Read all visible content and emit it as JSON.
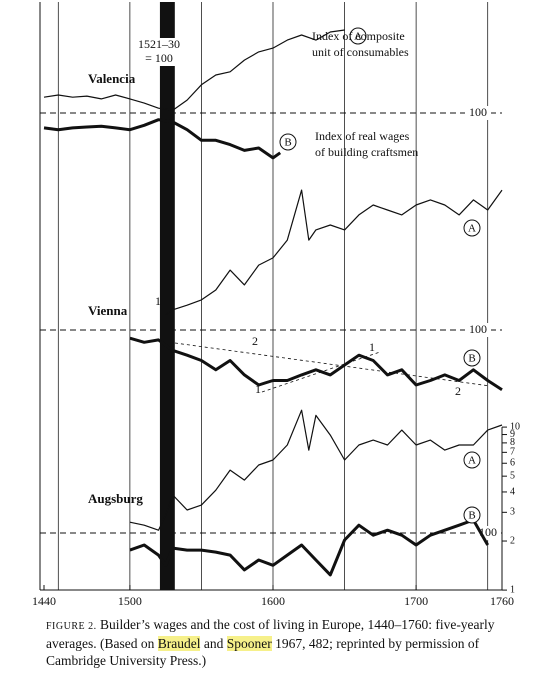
{
  "chart_data": {
    "type": "line",
    "log_scale": true,
    "xlim": [
      1440,
      1760
    ],
    "xticks": [
      1440,
      1500,
      1600,
      1700,
      1760
    ],
    "xgrid": [
      1450,
      1500,
      1550,
      1600,
      1650,
      1700,
      1750
    ],
    "base_period": {
      "label": [
        "1521–30",
        "= 100"
      ],
      "range": [
        1521,
        1530
      ]
    },
    "panels": [
      {
        "name": "Valencia",
        "ref": 100,
        "ref_label": "100",
        "series": [
          {
            "name": "A",
            "label_lines": [
              "Index of composite",
              "unit of consumables"
            ],
            "weight": "thin",
            "x": [
              1440,
              1450,
              1460,
              1470,
              1480,
              1490,
              1500,
              1510,
              1520,
              1530,
              1540,
              1550,
              1560,
              1570,
              1580,
              1590,
              1600,
              1610,
              1620,
              1630,
              1640,
              1650
            ],
            "values": [
              125,
              129,
              125,
              127,
              122,
              129,
              122,
              115,
              107,
              104,
              120,
              149,
              171,
              179,
              211,
              237,
              250,
              280,
              301,
              280,
              314,
              323
            ]
          },
          {
            "name": "B",
            "label_lines": [
              "Index of real wages",
              "of building craftsmen"
            ],
            "weight": "bold",
            "x": [
              1440,
              1450,
              1460,
              1470,
              1480,
              1490,
              1500,
              1510,
              1520,
              1530,
              1540,
              1550,
              1560,
              1570,
              1580,
              1590,
              1600,
              1605
            ],
            "values": [
              81,
              79,
              81,
              82,
              83,
              81,
              79,
              84,
              91,
              88,
              79,
              68,
              68,
              64,
              59,
              61,
              53,
              57
            ]
          }
        ]
      },
      {
        "name": "Vienna",
        "ref": 100,
        "ref_label": "100",
        "trend_labels": [
          "1",
          "2",
          "1",
          "1",
          "2"
        ],
        "series": [
          {
            "name": "A",
            "weight": "thin",
            "x": [
              1525,
              1530,
              1540,
              1550,
              1560,
              1570,
              1580,
              1590,
              1600,
              1610,
              1620,
              1625,
              1630,
              1640,
              1650,
              1660,
              1670,
              1680,
              1690,
              1700,
              1710,
              1720,
              1730,
              1740,
              1750,
              1760
            ],
            "values": [
              124,
              133,
              142,
              153,
              176,
              233,
              189,
              250,
              277,
              356,
              722,
              356,
              411,
              441,
              411,
              508,
              585,
              545,
              508,
              585,
              628,
              585,
              508,
              628,
              545,
              722
            ]
          },
          {
            "name": "B",
            "weight": "bold",
            "x": [
              1500,
              1510,
              1520,
              1530,
              1540,
              1550,
              1560,
              1570,
              1580,
              1590,
              1600,
              1610,
              1620,
              1630,
              1640,
              1650,
              1660,
              1670,
              1680,
              1690,
              1700,
              1710,
              1720,
              1730,
              1740,
              1750,
              1760
            ],
            "values": [
              89,
              84,
              87,
              75,
              70,
              65,
              57,
              65,
              53,
              46,
              49,
              49,
              53,
              57,
              53,
              61,
              70,
              65,
              53,
              57,
              46,
              49,
              53,
              49,
              57,
              49,
              43
            ]
          }
        ]
      },
      {
        "name": "Augsburg",
        "ref": 2.24,
        "ref_label": "100",
        "yticks": [
          1,
          2,
          3,
          4,
          5,
          6,
          7,
          8,
          9,
          10
        ],
        "series": [
          {
            "name": "A",
            "weight": "thin",
            "x": [
              1500,
              1510,
              1520,
              1525,
              1530,
              1540,
              1550,
              1560,
              1570,
              1580,
              1590,
              1600,
              1610,
              1620,
              1625,
              1630,
              1640,
              1650,
              1660,
              1670,
              1680,
              1690,
              1700,
              1710,
              1720,
              1730,
              1740,
              1750,
              1760
            ],
            "values": [
              2.61,
              2.5,
              2.33,
              2.88,
              3.83,
              3.1,
              3.32,
              4.1,
              5.45,
              4.73,
              5.85,
              6.28,
              7.76,
              12.7,
              7.22,
              11.8,
              8.93,
              6.28,
              7.76,
              8.32,
              7.76,
              9.59,
              7.76,
              8.32,
              7.22,
              7.76,
              7.76,
              9.59,
              10.3
            ]
          },
          {
            "name": "B",
            "weight": "bold",
            "x": [
              1500,
              1510,
              1520,
              1525,
              1530,
              1540,
              1550,
              1560,
              1570,
              1580,
              1590,
              1600,
              1610,
              1620,
              1630,
              1640,
              1650,
              1660,
              1670,
              1680,
              1690,
              1700,
              1710,
              1720,
              1730,
              1740,
              1750
            ],
            "values": [
              1.76,
              1.89,
              1.64,
              1.42,
              1.81,
              1.76,
              1.76,
              1.71,
              1.64,
              1.33,
              1.53,
              1.42,
              1.64,
              1.89,
              1.53,
              1.24,
              2.03,
              2.5,
              2.17,
              2.33,
              2.17,
              1.89,
              2.17,
              2.33,
              2.5,
              2.69,
              1.89
            ]
          }
        ]
      }
    ]
  },
  "caption": {
    "figure": "FIGURE 2.",
    "parts": [
      {
        "text": "Builder’s wages and the cost of living in Europe, 1440–1760: five-yearly averages. (Based on "
      },
      {
        "text": "Braudel",
        "highlight": true
      },
      {
        "text": " and "
      },
      {
        "text": "Spooner",
        "highlight": true
      },
      {
        "text": " 1967, 482; reprinted by permission of Cambridge University Press.)"
      }
    ]
  }
}
